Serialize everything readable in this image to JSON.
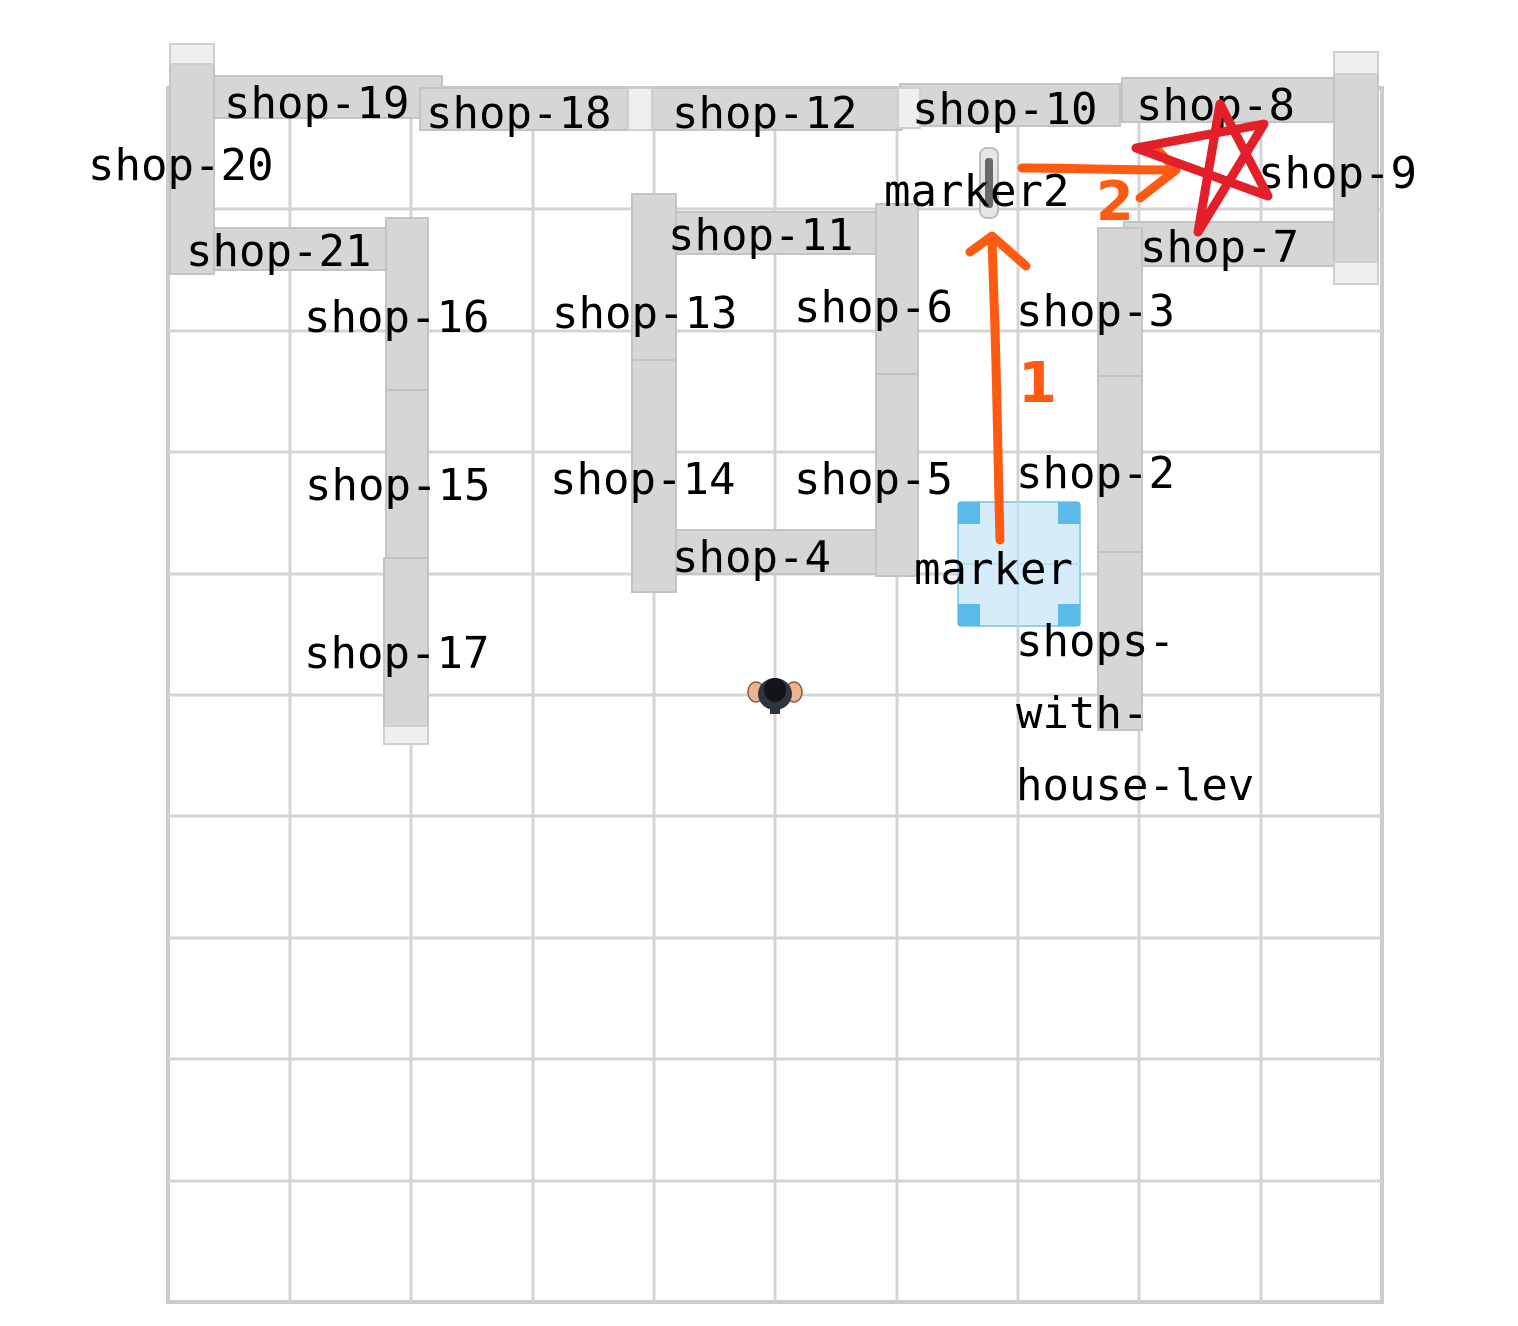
{
  "colors": {
    "grid": "#d4d4d4",
    "shelf": "#d6d6d6",
    "marker_fill": "#d6ecf8",
    "marker_corner": "#5bbbe8",
    "path_arrow": "#ff5a12",
    "target_star": "#e3202a"
  },
  "labels": {
    "shop_19": "shop-19",
    "shop_18": "shop-18",
    "shop_12": "shop-12",
    "shop_10": "shop-10",
    "shop_8": "shop-8",
    "shop_20": "shop-20",
    "shop_9": "shop-9",
    "marker2": "marker2",
    "shop_11": "shop-11",
    "shop_21": "shop-21",
    "shop_7": "shop-7",
    "shop_16": "shop-16",
    "shop_13": "shop-13",
    "shop_6": "shop-6",
    "shop_3": "shop-3",
    "shop_15": "shop-15",
    "shop_14": "shop-14",
    "shop_5": "shop-5",
    "shop_2": "shop-2",
    "shop_4": "shop-4",
    "marker": "marker",
    "shop_17": "shop-17",
    "shops_line1": "shops-",
    "shops_line2": "with-",
    "shops_line3": "house-lev"
  },
  "annotations": {
    "step_1": "1",
    "step_2": "2"
  },
  "icons": {
    "person": "person-icon",
    "target": "star-icon"
  }
}
